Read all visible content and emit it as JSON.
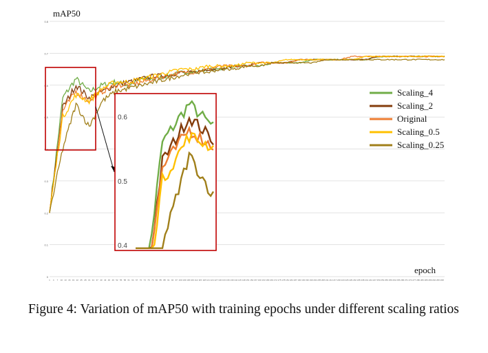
{
  "chart_data": {
    "type": "line",
    "ylabel": "mAP50",
    "xlabel": "epoch",
    "ylim": [
      0,
      0.8
    ],
    "yticks": [
      "0",
      "0.1",
      "0.2",
      "0.3",
      "0.4",
      "0.5",
      "0.6",
      "0.7",
      "0.8"
    ],
    "x_range": [
      1,
      300
    ],
    "grid": "horizontal",
    "legend_position": "right",
    "series": [
      {
        "name": "Scaling_4",
        "color": "#70ad47",
        "values": [
          0.2,
          0.56,
          0.62,
          0.58,
          0.6,
          0.61,
          0.6,
          0.62,
          0.62,
          0.63,
          0.64,
          0.64,
          0.65,
          0.65,
          0.66,
          0.66,
          0.66,
          0.67,
          0.67,
          0.67,
          0.68,
          0.68,
          0.68,
          0.68,
          0.68,
          0.69,
          0.69,
          0.69,
          0.69,
          0.69,
          0.69
        ]
      },
      {
        "name": "Scaling_2",
        "color": "#843c0c",
        "values": [
          0.2,
          0.53,
          0.6,
          0.56,
          0.58,
          0.6,
          0.61,
          0.62,
          0.63,
          0.63,
          0.64,
          0.64,
          0.65,
          0.65,
          0.66,
          0.66,
          0.67,
          0.67,
          0.67,
          0.68,
          0.68,
          0.68,
          0.68,
          0.68,
          0.68,
          0.69,
          0.69,
          0.69,
          0.69,
          0.69,
          0.69
        ]
      },
      {
        "name": "Original",
        "color": "#ed7d31",
        "values": [
          0.2,
          0.52,
          0.58,
          0.55,
          0.58,
          0.6,
          0.6,
          0.61,
          0.62,
          0.63,
          0.64,
          0.64,
          0.65,
          0.66,
          0.66,
          0.66,
          0.67,
          0.67,
          0.67,
          0.68,
          0.68,
          0.68,
          0.68,
          0.69,
          0.69,
          0.69,
          0.69,
          0.69,
          0.69,
          0.69,
          0.69
        ]
      },
      {
        "name": "Scaling_0.5",
        "color": "#ffc000",
        "values": [
          0.2,
          0.5,
          0.57,
          0.55,
          0.59,
          0.61,
          0.61,
          0.62,
          0.63,
          0.64,
          0.65,
          0.65,
          0.66,
          0.66,
          0.66,
          0.67,
          0.67,
          0.67,
          0.68,
          0.68,
          0.68,
          0.68,
          0.68,
          0.68,
          0.69,
          0.69,
          0.69,
          0.69,
          0.69,
          0.69,
          0.69
        ]
      },
      {
        "name": "Scaling_0.25",
        "color": "#a07f1a",
        "values": [
          0.2,
          0.4,
          0.54,
          0.47,
          0.55,
          0.58,
          0.59,
          0.6,
          0.61,
          0.62,
          0.63,
          0.64,
          0.64,
          0.65,
          0.65,
          0.66,
          0.66,
          0.67,
          0.67,
          0.67,
          0.67,
          0.68,
          0.68,
          0.68,
          0.68,
          0.68,
          0.68,
          0.68,
          0.68,
          0.68,
          0.68
        ]
      }
    ],
    "inset": {
      "yticks": [
        "0.4",
        "0.5",
        "0.6"
      ],
      "ylim": [
        0.4,
        0.62
      ],
      "zoomed_x_range": [
        1,
        30
      ]
    }
  },
  "caption": "Figure 4: Variation of mAP50 with training epochs under different scaling ratios"
}
